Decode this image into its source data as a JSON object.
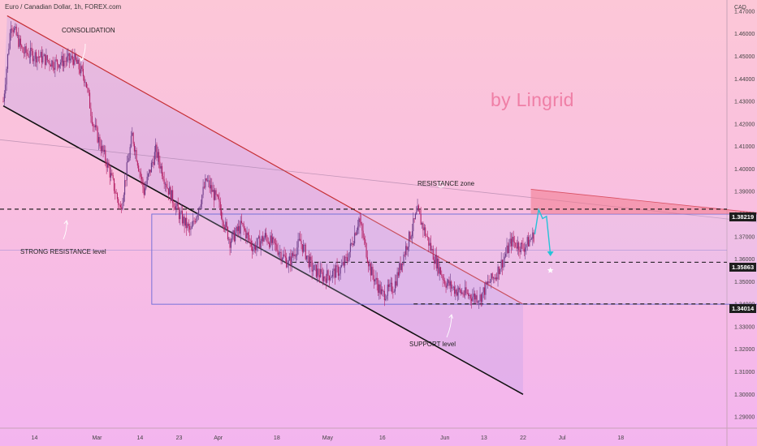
{
  "header": {
    "title": "Euro / Canadian Dollar, 1h, FOREX.com",
    "currency": "CAD"
  },
  "watermark": "by Lingrid",
  "annotations": {
    "consolidation": "CONSOLIDATION",
    "strong_resistance": "STRONG RESISTANCE level",
    "resistance_zone": "RESISTANCE zone",
    "support": "SUPPORT level"
  },
  "price_tags": {
    "high": "1.38219",
    "mid": "1.35863",
    "low": "1.34014"
  },
  "colors": {
    "channel_upper": "#c62f35",
    "channel_lower": "#111111",
    "rectangle": "#6a6ad8",
    "resistance_fill": "#f27a8c",
    "projection": "#25c2d8",
    "candle_up": "#6b3a87",
    "candle_down": "#b41e62"
  },
  "chart_data": {
    "type": "candlestick",
    "title": "Euro / Canadian Dollar, 1h, FOREX.com",
    "ylabel": "CAD",
    "ylim": [
      1.285,
      1.475
    ],
    "y_ticks": [
      1.29,
      1.3,
      1.31,
      1.32,
      1.33,
      1.34,
      1.35,
      1.36,
      1.37,
      1.38,
      1.39,
      1.4,
      1.41,
      1.42,
      1.43,
      1.44,
      1.45,
      1.46,
      1.47
    ],
    "x_ticks": [
      "14",
      "Mar",
      "14",
      "23",
      "Apr",
      "18",
      "May",
      "16",
      "Jun",
      "13",
      "22",
      "Jul",
      "18"
    ],
    "x_tick_index": [
      8,
      24,
      35,
      45,
      55,
      70,
      83,
      97,
      113,
      123,
      133,
      143,
      158
    ],
    "x_tick_count": 186,
    "grid": true,
    "horizontal_levels": [
      {
        "price": 1.38219,
        "label": "1.38219"
      },
      {
        "price": 1.35863,
        "label": "1.35863"
      },
      {
        "price": 1.34014,
        "label": "1.34014"
      }
    ],
    "price_path": [
      [
        0,
        1.43
      ],
      [
        2,
        1.465
      ],
      [
        5,
        1.452
      ],
      [
        9,
        1.45
      ],
      [
        13,
        1.447
      ],
      [
        18,
        1.449
      ],
      [
        21,
        1.44
      ],
      [
        23,
        1.42
      ],
      [
        27,
        1.4
      ],
      [
        30,
        1.382
      ],
      [
        33,
        1.415
      ],
      [
        36,
        1.39
      ],
      [
        39,
        1.408
      ],
      [
        42,
        1.392
      ],
      [
        45,
        1.38
      ],
      [
        48,
        1.372
      ],
      [
        52,
        1.395
      ],
      [
        55,
        1.385
      ],
      [
        58,
        1.368
      ],
      [
        61,
        1.375
      ],
      [
        64,
        1.365
      ],
      [
        67,
        1.37
      ],
      [
        70,
        1.365
      ],
      [
        73,
        1.358
      ],
      [
        76,
        1.368
      ],
      [
        79,
        1.356
      ],
      [
        82,
        1.352
      ],
      [
        86,
        1.355
      ],
      [
        88,
        1.36
      ],
      [
        91,
        1.378
      ],
      [
        94,
        1.355
      ],
      [
        97,
        1.344
      ],
      [
        100,
        1.348
      ],
      [
        103,
        1.365
      ],
      [
        106,
        1.381
      ],
      [
        110,
        1.362
      ],
      [
        113,
        1.35
      ],
      [
        116,
        1.346
      ],
      [
        119,
        1.344
      ],
      [
        122,
        1.343
      ],
      [
        124,
        1.349
      ],
      [
        126,
        1.353
      ],
      [
        128,
        1.36
      ],
      [
        130,
        1.368
      ],
      [
        133,
        1.365
      ],
      [
        136,
        1.371
      ]
    ],
    "projection_path": [
      [
        136,
        1.371
      ],
      [
        137,
        1.382
      ],
      [
        138,
        1.378
      ],
      [
        139,
        1.379
      ],
      [
        140,
        1.362
      ]
    ]
  }
}
